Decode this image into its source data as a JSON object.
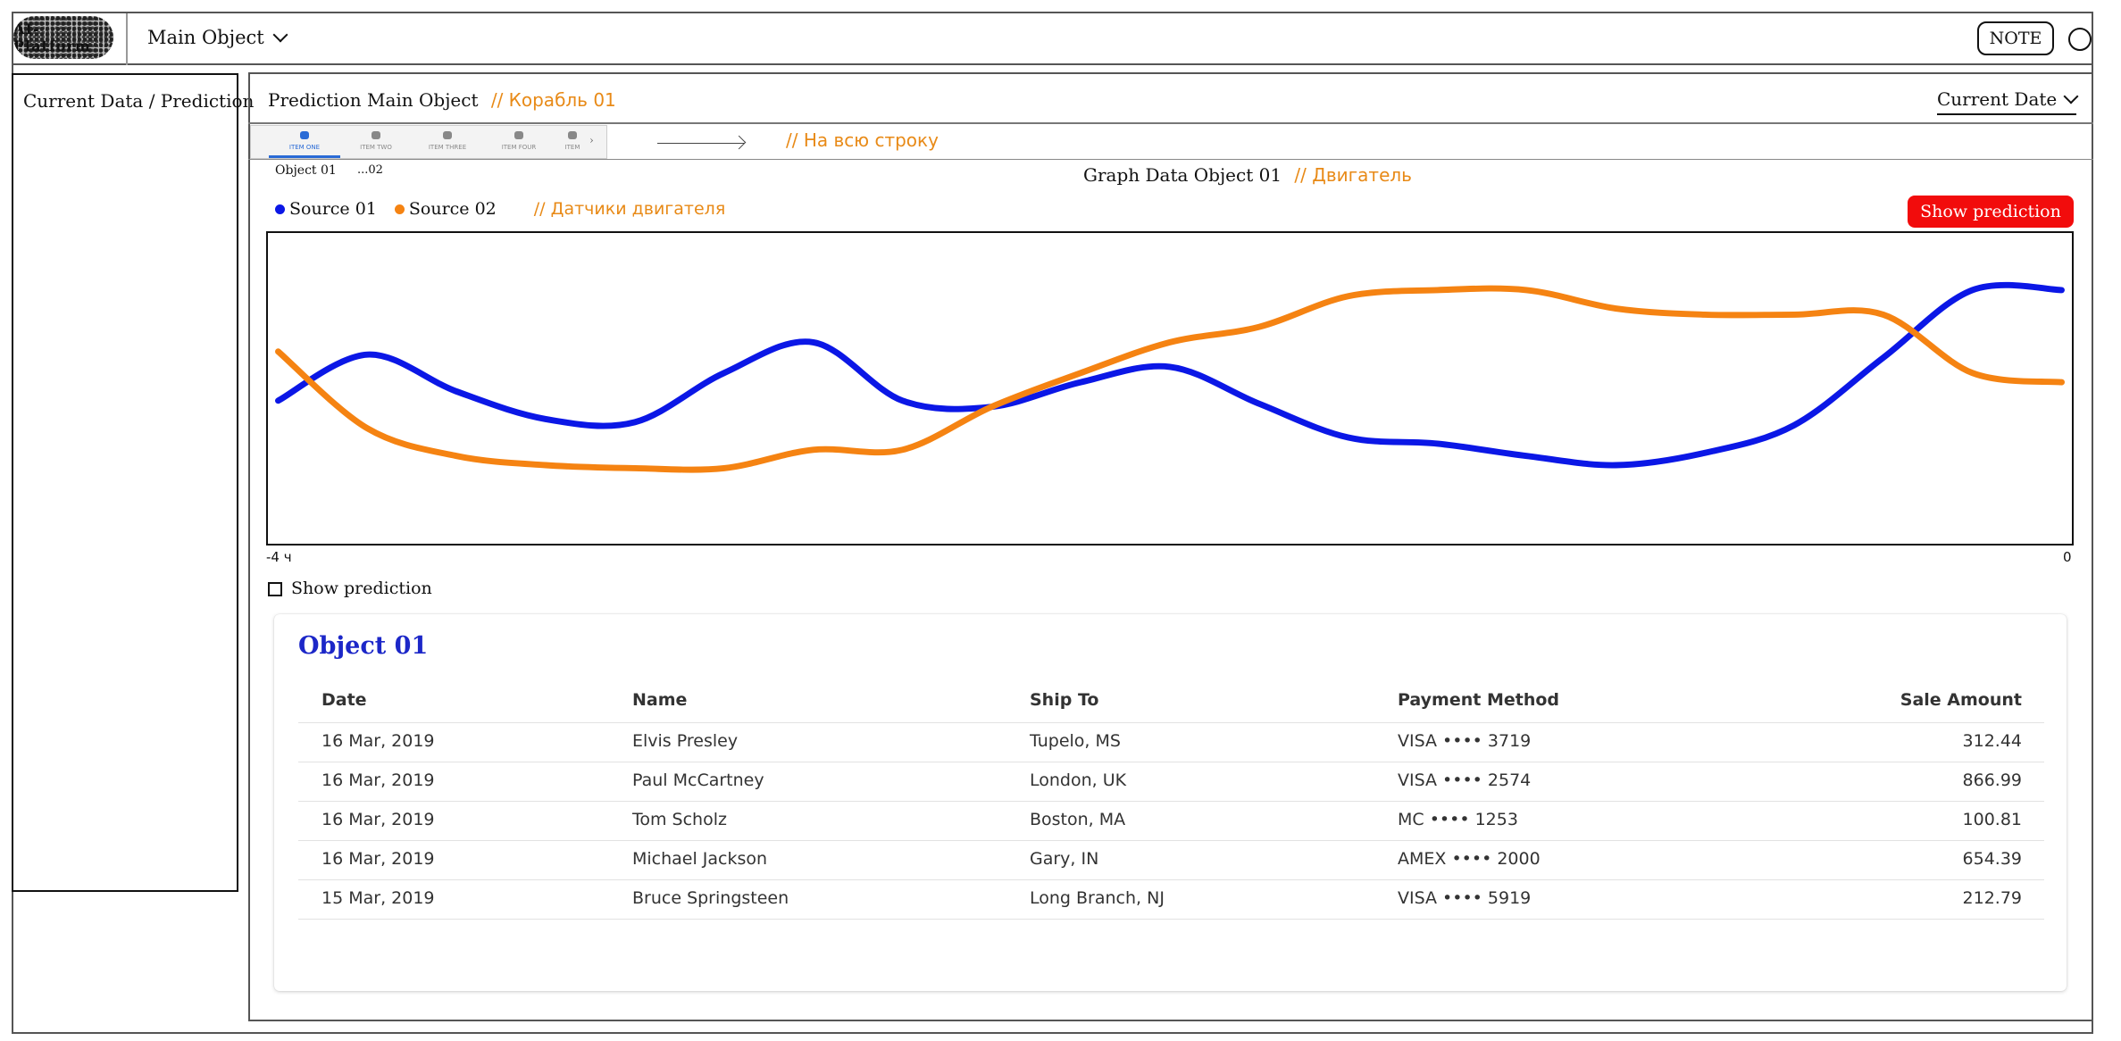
{
  "header": {
    "logo_text": "AI-Platform",
    "main_object_label": "Main Object",
    "note_label": "NOTE"
  },
  "sidebar": {
    "label": "Current Data / Prediction"
  },
  "panel": {
    "title": "Prediction Main Object",
    "title_note": "// Корабль 01",
    "current_date_label": "Current Date"
  },
  "tabs": [
    {
      "label": "ITEM ONE",
      "icon": "phone-icon"
    },
    {
      "label": "ITEM TWO",
      "icon": "heart-icon"
    },
    {
      "label": "ITEM THREE",
      "icon": "person-icon"
    },
    {
      "label": "ITEM FOUR",
      "icon": "help-icon"
    },
    {
      "label": "ITEM",
      "icon": "speaker-icon"
    }
  ],
  "tab_strip_note": "// На всю строку",
  "object_tabs": [
    "Object 01",
    "...02"
  ],
  "graph": {
    "title": "Graph Data Object 01",
    "title_note": "// Двигатель",
    "legend_note": "// Датчики двигателя",
    "show_prediction_button": "Show prediction",
    "checkbox_label": "Show prediction",
    "x_start_label": "-4 ч",
    "x_end_label": "0"
  },
  "colors": {
    "source_01": "#0b17e6",
    "source_02": "#f58312",
    "button_red": "#f20c0c"
  },
  "chart_data": {
    "type": "line",
    "title": "Graph Data Object 01",
    "xlabel": "",
    "ylabel": "",
    "xlim": [
      -4,
      0
    ],
    "x_tick_labels": [
      "-4 ч",
      "0"
    ],
    "grid": false,
    "legend": "top-left",
    "x": [
      -4.0,
      -3.8,
      -3.6,
      -3.4,
      -3.2,
      -3.0,
      -2.8,
      -2.6,
      -2.4,
      -2.2,
      -2.0,
      -1.8,
      -1.6,
      -1.4,
      -1.2,
      -1.0,
      -0.8,
      -0.6,
      -0.4,
      -0.2,
      0.0
    ],
    "series": [
      {
        "name": "Source 01",
        "values": [
          0.46,
          0.61,
          0.49,
          0.4,
          0.39,
          0.55,
          0.65,
          0.46,
          0.44,
          0.52,
          0.57,
          0.45,
          0.34,
          0.32,
          0.28,
          0.25,
          0.29,
          0.38,
          0.6,
          0.82,
          0.82
        ]
      },
      {
        "name": "Source 02",
        "values": [
          0.62,
          0.37,
          0.28,
          0.25,
          0.24,
          0.24,
          0.3,
          0.3,
          0.44,
          0.55,
          0.65,
          0.7,
          0.8,
          0.82,
          0.82,
          0.76,
          0.74,
          0.74,
          0.74,
          0.55,
          0.52
        ]
      }
    ]
  },
  "table": {
    "title": "Object 01",
    "columns": [
      "Date",
      "Name",
      "Ship To",
      "Payment Method",
      "Sale Amount"
    ],
    "rows": [
      [
        "16 Mar, 2019",
        "Elvis Presley",
        "Tupelo, MS",
        "VISA  •••• 3719",
        "312.44"
      ],
      [
        "16 Mar, 2019",
        "Paul McCartney",
        "London, UK",
        "VISA  •••• 2574",
        "866.99"
      ],
      [
        "16 Mar, 2019",
        "Tom Scholz",
        "Boston, MA",
        "MC  •••• 1253",
        "100.81"
      ],
      [
        "16 Mar, 2019",
        "Michael Jackson",
        "Gary, IN",
        "AMEX  •••• 2000",
        "654.39"
      ],
      [
        "15 Mar, 2019",
        "Bruce Springsteen",
        "Long Branch, NJ",
        "VISA  •••• 5919",
        "212.79"
      ]
    ]
  }
}
